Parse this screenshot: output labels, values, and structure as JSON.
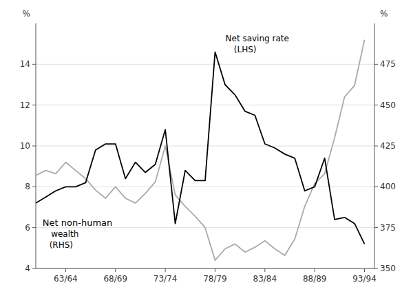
{
  "chart_data": {
    "type": "line",
    "x": [
      1960,
      1961,
      1962,
      1963,
      1964,
      1965,
      1966,
      1967,
      1968,
      1969,
      1970,
      1971,
      1972,
      1973,
      1974,
      1975,
      1976,
      1977,
      1978,
      1979,
      1980,
      1981,
      1982,
      1983,
      1984,
      1985,
      1986,
      1987,
      1988,
      1989,
      1990,
      1991,
      1992,
      1993
    ],
    "xlim": [
      1960,
      1994
    ],
    "xticks": [
      {
        "value": 1963,
        "label": "63/64"
      },
      {
        "value": 1968,
        "label": "68/69"
      },
      {
        "value": 1973,
        "label": "73/74"
      },
      {
        "value": 1978,
        "label": "78/79"
      },
      {
        "value": 1983,
        "label": "83/84"
      },
      {
        "value": 1988,
        "label": "88/89"
      },
      {
        "value": 1993,
        "label": "93/94"
      }
    ],
    "ylim": [
      4,
      16
    ],
    "yticks": [
      4,
      6,
      8,
      10,
      12,
      14
    ],
    "y2lim": [
      350,
      500
    ],
    "y2ticks": [
      350,
      375,
      400,
      425,
      450,
      475
    ],
    "ylabel": "%",
    "y2label": "%",
    "grid": true,
    "annotations": [
      "Net saving rate",
      "(LHS)",
      "Net non-human",
      "wealth",
      "(RHS)"
    ],
    "series": [
      {
        "color": "#000000",
        "values": [
          7.2,
          7.5,
          7.8,
          8.0,
          8.0,
          8.2,
          9.8,
          10.1,
          10.1,
          8.4,
          9.2,
          8.7,
          9.1,
          10.8,
          6.2,
          8.8,
          8.3,
          8.3,
          14.6,
          13.0,
          12.5,
          11.7,
          11.5,
          10.1,
          9.9,
          9.6,
          9.4,
          7.8,
          8.0,
          9.4,
          6.4,
          6.5,
          6.2,
          5.2
        ]
      },
      {
        "color": "#aaaaaa",
        "axis": "y2",
        "values": [
          407,
          410,
          408,
          415,
          410,
          405,
          398,
          393,
          400,
          393,
          390,
          396,
          403,
          425,
          395,
          388,
          382,
          375,
          355,
          362,
          365,
          360,
          363,
          367,
          362,
          358,
          368,
          388,
          402,
          408,
          430,
          455,
          462,
          490
        ]
      }
    ]
  }
}
